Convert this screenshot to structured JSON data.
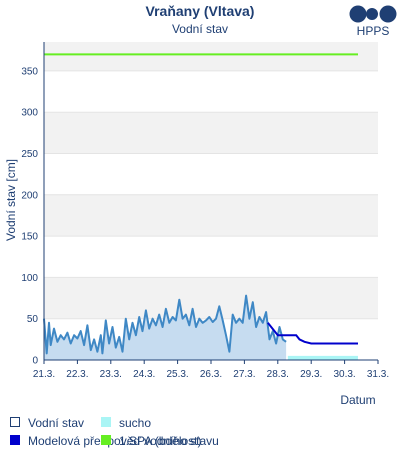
{
  "chart_data": {
    "type": "line",
    "title": "Vraňany (Vltava)",
    "subtitle": "Vodní stav",
    "ylabel": "Vodní stav [cm]",
    "xlabel": "Datum",
    "ylim": [
      0,
      385
    ],
    "yticks": [
      0,
      50,
      100,
      150,
      200,
      250,
      300,
      350
    ],
    "xlim": [
      "2024-03-21",
      "2024-03-31"
    ],
    "xtick_labels": [
      "21.3.",
      "22.3.",
      "23.3.",
      "24.3.",
      "25.3.",
      "26.3.",
      "27.3.",
      "28.3.",
      "29.3.",
      "30.3.",
      "31.3."
    ],
    "grid": "horizontal bands",
    "legend_placement": "bottom",
    "colors": {
      "measured_fill": "#c6dcf0",
      "measured_line": "#3f88c5",
      "forecast": "#0000cc",
      "drought": "#aaf5f5",
      "spa1": "#66ee22",
      "band": "#f2f2f2",
      "text": "#1f3f73"
    },
    "series": [
      {
        "name": "Vodní stav",
        "x_days": [
          0,
          0.08,
          0.15,
          0.2,
          0.3,
          0.4,
          0.5,
          0.6,
          0.7,
          0.8,
          0.9,
          1.0,
          1.1,
          1.2,
          1.3,
          1.4,
          1.5,
          1.6,
          1.7,
          1.75,
          1.85,
          1.95,
          2.05,
          2.15,
          2.25,
          2.35,
          2.45,
          2.55,
          2.65,
          2.75,
          2.85,
          2.95,
          3.05,
          3.15,
          3.25,
          3.35,
          3.45,
          3.55,
          3.65,
          3.75,
          3.85,
          3.95,
          4.05,
          4.15,
          4.25,
          4.35,
          4.45,
          4.55,
          4.65,
          4.75,
          4.85,
          4.95,
          5.05,
          5.15,
          5.25,
          5.35,
          5.45,
          5.55,
          5.65,
          5.75,
          5.85,
          5.95,
          6.05,
          6.15,
          6.25,
          6.35,
          6.45,
          6.55,
          6.65,
          6.75,
          6.85,
          6.95,
          7.05,
          7.15,
          7.25
        ],
        "values": [
          50,
          8,
          45,
          18,
          38,
          22,
          30,
          25,
          33,
          20,
          30,
          26,
          35,
          18,
          42,
          12,
          25,
          10,
          30,
          8,
          48,
          20,
          40,
          15,
          28,
          10,
          50,
          25,
          45,
          30,
          52,
          35,
          60,
          38,
          50,
          42,
          55,
          40,
          62,
          45,
          52,
          48,
          73,
          50,
          55,
          42,
          62,
          40,
          50,
          45,
          48,
          52,
          46,
          50,
          65,
          48,
          30,
          10,
          55,
          45,
          50,
          45,
          78,
          50,
          70,
          40,
          52,
          45,
          58,
          25,
          35,
          20,
          40,
          25,
          22
        ]
      },
      {
        "name": "Modelová předpověď vodního stavu",
        "x_days": [
          6.7,
          7.0,
          7.3,
          7.55,
          7.65,
          7.8,
          8.0,
          8.2,
          8.5,
          8.8,
          9.1,
          9.4
        ],
        "values": [
          45,
          30,
          30,
          30,
          25,
          22,
          20,
          20,
          20,
          20,
          20,
          20
        ]
      },
      {
        "name": "sucho",
        "x_days": [
          7.3,
          9.4
        ],
        "values": [
          5,
          5
        ]
      },
      {
        "name": "1.SPA (bdělost)",
        "x_days": [
          0,
          9.4
        ],
        "values": [
          370,
          370
        ]
      }
    ]
  },
  "logo": {
    "text": "HPPS",
    "color": "#1f3f73"
  },
  "legend": [
    {
      "label": "Vodní stav",
      "swatch": "box"
    },
    {
      "label": "Modelová předpověď vodního stavu",
      "swatch": "fill"
    },
    {
      "label": "sucho",
      "swatch": "fill"
    },
    {
      "label": "1.SPA (bdělost)",
      "swatch": "fill"
    }
  ]
}
